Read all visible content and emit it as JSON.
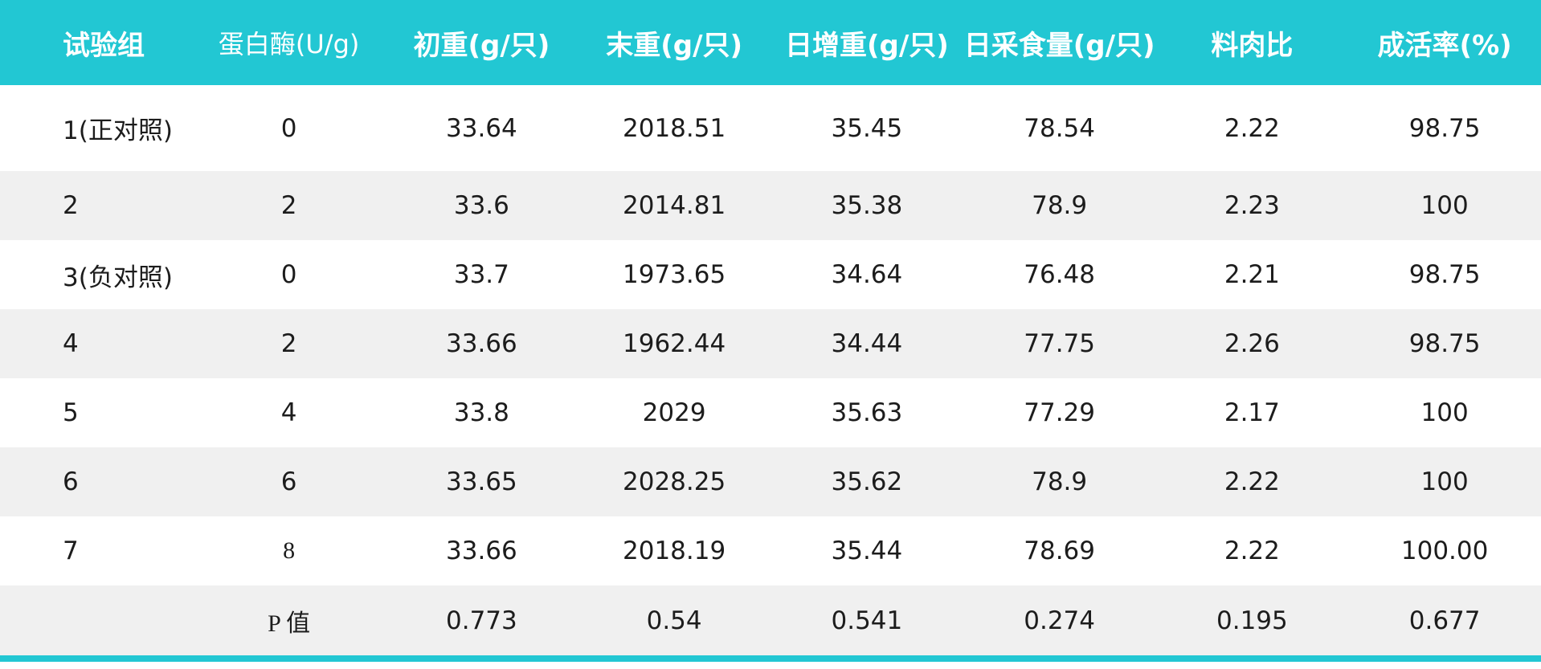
{
  "colors": {
    "header_bg": "#22c7d3",
    "header_text": "#ffffff",
    "row_alt_bg": "#f0f0f0",
    "row_bg": "#ffffff",
    "body_text": "#1c1c1c",
    "bottom_bar": "#22c7d3"
  },
  "chart_data": {
    "type": "table",
    "columns": [
      "试验组",
      "蛋白酶(U/g)",
      "初重(g/只)",
      "末重(g/只)",
      "日增重(g/只)",
      "日采食量(g/只)",
      "料肉比",
      "成活率(%)"
    ],
    "rows": [
      [
        "1(正对照)",
        "0",
        "33.64",
        "2018.51",
        "35.45",
        "78.54",
        "2.22",
        "98.75"
      ],
      [
        "2",
        "2",
        "33.6",
        "2014.81",
        "35.38",
        "78.9",
        "2.23",
        "100"
      ],
      [
        "3(负对照)",
        "0",
        "33.7",
        "1973.65",
        "34.64",
        "76.48",
        "2.21",
        "98.75"
      ],
      [
        "4",
        "2",
        "33.66",
        "1962.44",
        "34.44",
        "77.75",
        "2.26",
        "98.75"
      ],
      [
        "5",
        "4",
        "33.8",
        "2029",
        "35.63",
        "77.29",
        "2.17",
        "100"
      ],
      [
        "6",
        "6",
        "33.65",
        "2028.25",
        "35.62",
        "78.9",
        "2.22",
        "100"
      ],
      [
        "7",
        "8",
        "33.66",
        "2018.19",
        "35.44",
        "78.69",
        "2.22",
        "100.00"
      ],
      [
        "",
        "P 值",
        "0.773",
        "0.54",
        "0.541",
        "0.274",
        "0.195",
        "0.677"
      ]
    ]
  }
}
